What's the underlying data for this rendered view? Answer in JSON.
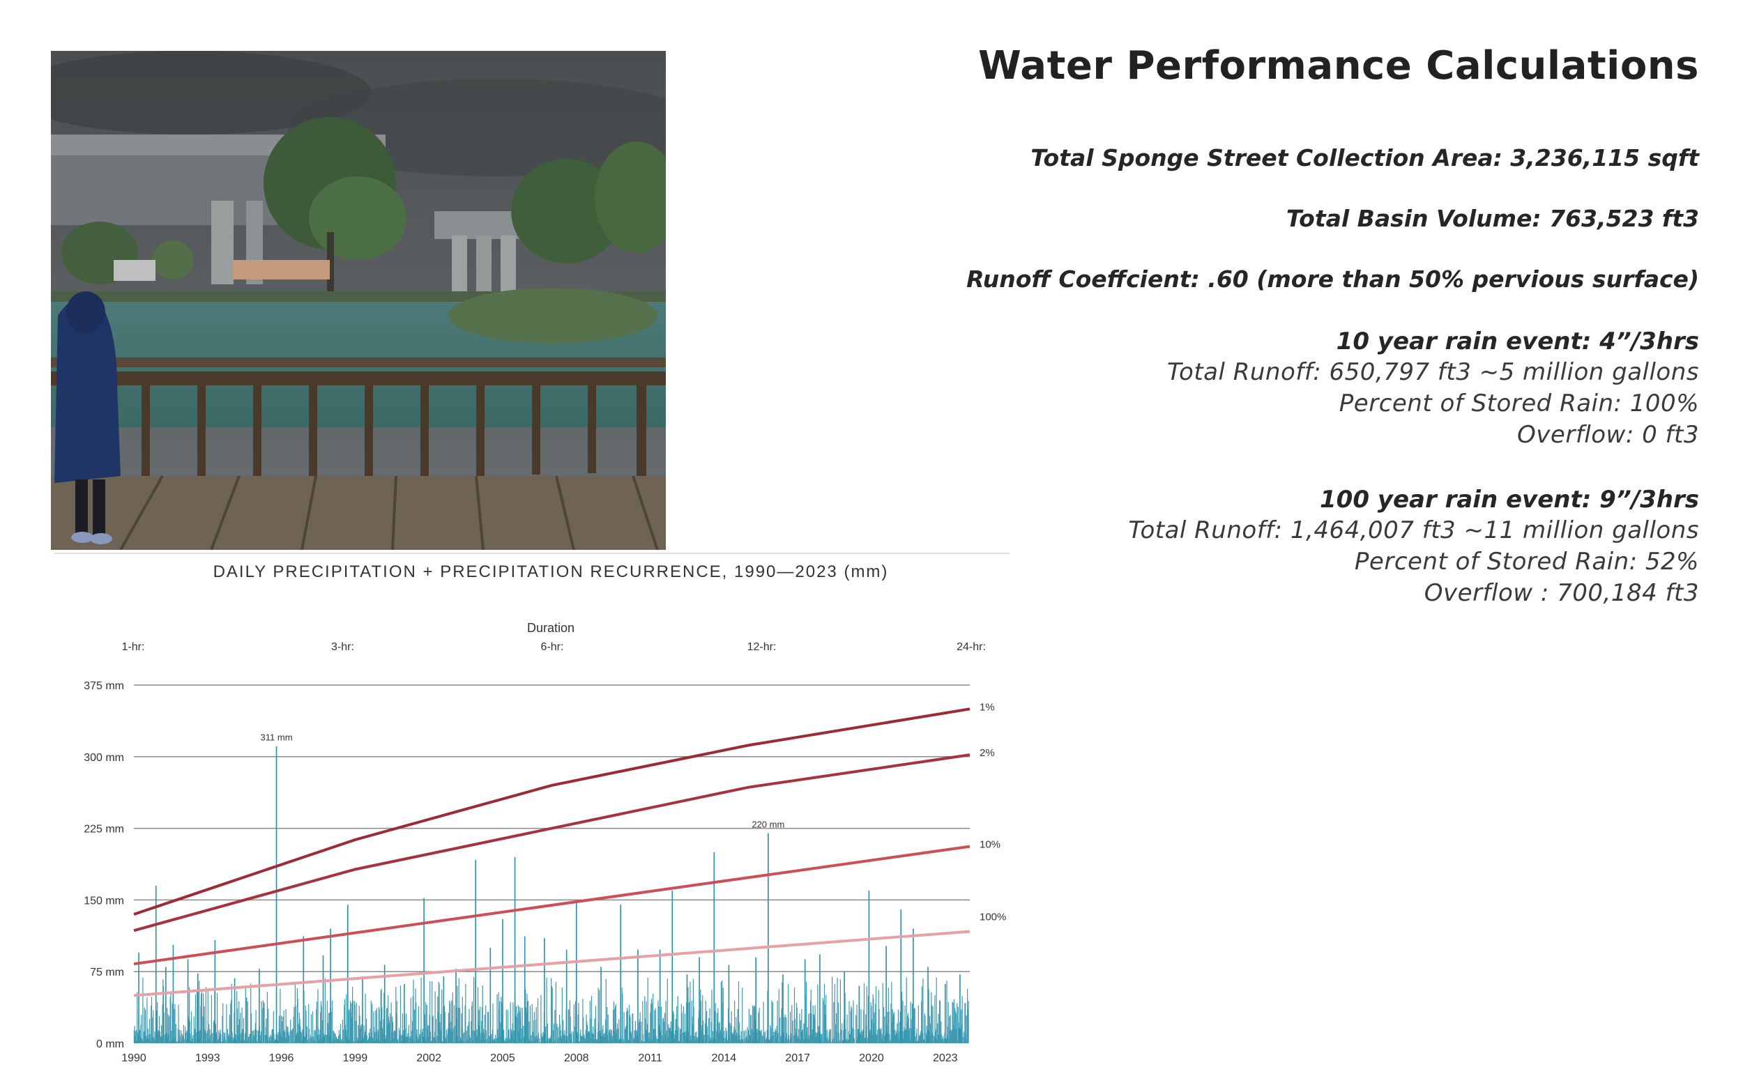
{
  "panel": {
    "title": "Water Performance Calculations",
    "stats": [
      "Total Sponge Street Collection Area: 3,236,115 sqft",
      "Total Basin Volume: 763,523 ft3",
      "Runoff Coeffcient: .60 (more than 50% pervious surface)"
    ],
    "events": [
      {
        "title": "10 year rain event: 4”/3hrs",
        "lines": [
          "Total Runoff: 650,797 ft3 ~5 million gallons",
          "Percent of Stored Rain: 100%",
          "Overflow: 0 ft3"
        ]
      },
      {
        "title": "100 year rain event: 9”/3hrs",
        "lines": [
          "Total Runoff: 1,464,007 ft3 ~11 million gallons",
          "Percent of Stored Rain: 52%",
          "Overflow : 700,184 ft3"
        ]
      }
    ]
  },
  "colors": {
    "bars": "#2a8fa8",
    "curve_1pct": "#9e2a33",
    "curve_2pct": "#a8323b",
    "curve_10pct": "#cc4e57",
    "curve_100pct": "#e6a0a6",
    "grid": "#8a8a8a"
  },
  "chart_data": {
    "type": "bar",
    "title": "DAILY PRECIPITATION + PRECIPITATION RECURRENCE, 1990—2023 (mm)",
    "top_axis_label": "Duration",
    "top_ticks": [
      "1-hr:",
      "3-hr:",
      "6-hr:",
      "12-hr:",
      "24-hr:"
    ],
    "x_ticks": [
      "1990",
      "1993",
      "1996",
      "1999",
      "2002",
      "2005",
      "2008",
      "2011",
      "2014",
      "2017",
      "2020",
      "2023"
    ],
    "xlim": [
      1990,
      2024
    ],
    "y_ticks": [
      "0 mm",
      "75 mm",
      "150 mm",
      "225 mm",
      "300 mm",
      "375 mm"
    ],
    "ylim": [
      0,
      375
    ],
    "grid": true,
    "daily_precipitation_peaks": [
      {
        "x": 1990.2,
        "y": 95
      },
      {
        "x": 1990.9,
        "y": 165
      },
      {
        "x": 1991.3,
        "y": 80
      },
      {
        "x": 1991.6,
        "y": 103
      },
      {
        "x": 1992.2,
        "y": 88
      },
      {
        "x": 1992.6,
        "y": 73
      },
      {
        "x": 1993.3,
        "y": 108
      },
      {
        "x": 1994.1,
        "y": 68
      },
      {
        "x": 1995.1,
        "y": 78
      },
      {
        "x": 1995.8,
        "y": 311
      },
      {
        "x": 1996.9,
        "y": 112
      },
      {
        "x": 1997.7,
        "y": 92
      },
      {
        "x": 1998.0,
        "y": 120
      },
      {
        "x": 1998.7,
        "y": 145
      },
      {
        "x": 1999.3,
        "y": 70
      },
      {
        "x": 2000.2,
        "y": 82
      },
      {
        "x": 2001.0,
        "y": 62
      },
      {
        "x": 2001.8,
        "y": 152
      },
      {
        "x": 2002.6,
        "y": 70
      },
      {
        "x": 2003.1,
        "y": 78
      },
      {
        "x": 2003.9,
        "y": 192
      },
      {
        "x": 2004.5,
        "y": 100
      },
      {
        "x": 2005.0,
        "y": 130
      },
      {
        "x": 2005.5,
        "y": 195
      },
      {
        "x": 2005.9,
        "y": 112
      },
      {
        "x": 2006.7,
        "y": 110
      },
      {
        "x": 2007.6,
        "y": 98
      },
      {
        "x": 2008.0,
        "y": 150
      },
      {
        "x": 2009.0,
        "y": 80
      },
      {
        "x": 2009.8,
        "y": 145
      },
      {
        "x": 2010.5,
        "y": 98
      },
      {
        "x": 2011.4,
        "y": 98
      },
      {
        "x": 2011.9,
        "y": 160
      },
      {
        "x": 2012.5,
        "y": 72
      },
      {
        "x": 2013.0,
        "y": 90
      },
      {
        "x": 2013.6,
        "y": 200
      },
      {
        "x": 2014.2,
        "y": 82
      },
      {
        "x": 2015.3,
        "y": 90
      },
      {
        "x": 2015.8,
        "y": 220
      },
      {
        "x": 2016.4,
        "y": 72
      },
      {
        "x": 2017.3,
        "y": 88
      },
      {
        "x": 2017.9,
        "y": 93
      },
      {
        "x": 2018.9,
        "y": 75
      },
      {
        "x": 2019.5,
        "y": 60
      },
      {
        "x": 2019.9,
        "y": 160
      },
      {
        "x": 2020.6,
        "y": 102
      },
      {
        "x": 2021.2,
        "y": 140
      },
      {
        "x": 2021.7,
        "y": 120
      },
      {
        "x": 2022.3,
        "y": 80
      },
      {
        "x": 2023.0,
        "y": 62
      },
      {
        "x": 2023.6,
        "y": 72
      }
    ],
    "annotations": [
      {
        "text": "311 mm",
        "x": 1995.8,
        "y": 311
      },
      {
        "text": "220 mm",
        "x": 2015.8,
        "y": 220
      }
    ],
    "series": [
      {
        "name": "1%",
        "x": [
          1990,
          1999,
          2007,
          2015,
          2024
        ],
        "y": [
          135,
          213,
          270,
          312,
          350
        ]
      },
      {
        "name": "2%",
        "x": [
          1990,
          1999,
          2007,
          2015,
          2024
        ],
        "y": [
          118,
          182,
          225,
          268,
          302
        ]
      },
      {
        "name": "10%",
        "x": [
          1990,
          2024
        ],
        "y": [
          83,
          206
        ]
      },
      {
        "name": "100%",
        "x": [
          1990,
          2024
        ],
        "y": [
          50,
          117
        ]
      }
    ]
  }
}
